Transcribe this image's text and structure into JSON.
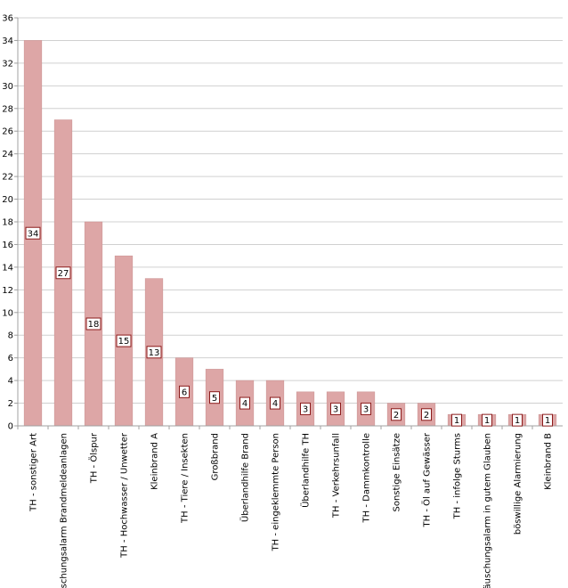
{
  "chart_data": {
    "type": "bar",
    "categories": [
      "TH - sonstiger Art",
      "Täuschungsalarm Brandmeldeanlagen",
      "TH - Ölspur",
      "TH - Hochwasser / Unwetter",
      "Kleinbrand A",
      "TH - Tiere / Insekten",
      "Großbrand",
      "Überlandhilfe Brand",
      "TH - eingeklemmte Person",
      "Überlandhilfe TH",
      "TH - Verkehrsunfall",
      "TH - Dammkontrolle",
      "Sonstige Einsätze",
      "TH - Öl auf Gewässer",
      "TH - infolge Sturms",
      "Täuschungsalarm in gutem Glauben",
      "böswillige Alarmierung",
      "Kleinbrand B"
    ],
    "values": [
      34,
      27,
      18,
      15,
      13,
      6,
      5,
      4,
      4,
      3,
      3,
      3,
      2,
      2,
      1,
      1,
      1,
      1
    ],
    "data_labels": [
      "34",
      "27",
      "18",
      "15",
      "13",
      "6",
      "5",
      "4",
      "4",
      "3",
      "3",
      "3",
      "2",
      "2",
      "1",
      "1",
      "1",
      "1"
    ],
    "y_ticks": [
      "0",
      "2",
      "4",
      "6",
      "8",
      "10",
      "12",
      "14",
      "16",
      "18",
      "20",
      "22",
      "24",
      "26",
      "28",
      "30",
      "32",
      "34",
      "36"
    ],
    "ylim": [
      0,
      36
    ],
    "grid": true,
    "legend": "none",
    "colors": {
      "bar_fill": "#dda6a6",
      "bar_stroke": "#c98f8f",
      "label_border": "#8b1a1a",
      "grid": "#d0d0d0",
      "axis": "#a0a0a0"
    }
  }
}
